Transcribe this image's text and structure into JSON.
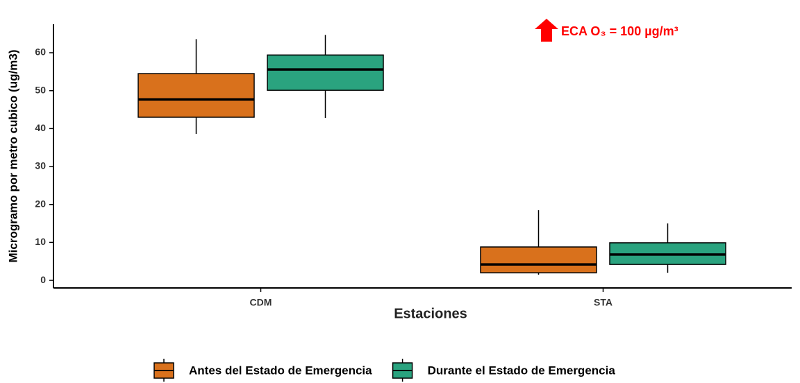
{
  "chart_data": {
    "type": "box",
    "y_label": "Microgramo por metro cubico (ug/m3)",
    "x_label": "Estaciones",
    "annotation": "ECA O₃ = 100 µg/m³",
    "categories": [
      "CDM",
      "STA"
    ],
    "series": [
      {
        "name": "Antes del Estado de Emergencia",
        "color": "#d9711c",
        "min": [
          38.6,
          1.5
        ],
        "q1": [
          43.0,
          2.0
        ],
        "median": [
          47.7,
          4.2
        ],
        "q3": [
          54.5,
          8.8
        ],
        "max": [
          63.6,
          18.5
        ]
      },
      {
        "name": "Durante el Estado de Emergencia",
        "color": "#2aa37f",
        "min": [
          42.8,
          2.0
        ],
        "q1": [
          50.1,
          4.2
        ],
        "median": [
          55.6,
          6.8
        ],
        "q3": [
          59.4,
          9.9
        ],
        "max": [
          64.7,
          15.0
        ]
      }
    ],
    "ylim": [
      -2,
      67.5
    ],
    "yticks": [
      0,
      10,
      20,
      30,
      40,
      50,
      60
    ],
    "grid": false
  }
}
